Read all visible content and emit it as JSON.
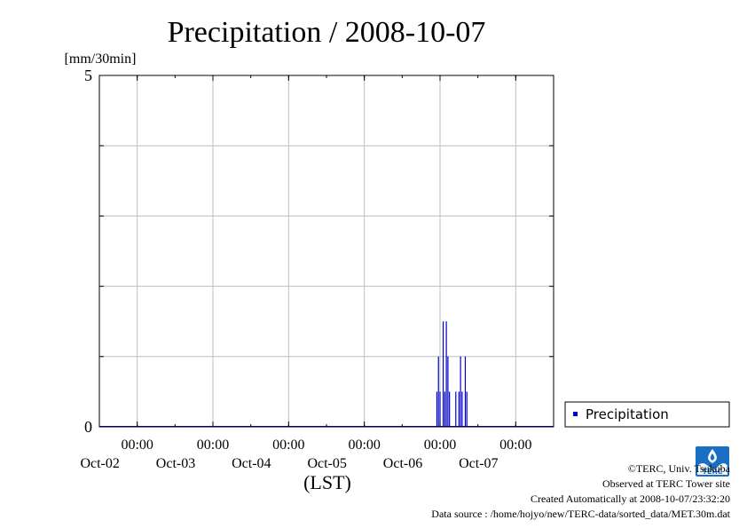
{
  "chart_data": {
    "type": "bar",
    "title": "Precipitation / 2008-10-07",
    "ylabel": "[mm/30min]",
    "xlabel": "(LST)",
    "ylim": [
      0,
      5
    ],
    "y_ticks": [
      0,
      5
    ],
    "grid": true,
    "legend_position": "right",
    "x_range": [
      "2008-10-01 12:00",
      "2008-10-07 12:00"
    ],
    "x_ticks": [
      {
        "time": "2008-10-02 00:00",
        "time_label": "00:00",
        "date_label": "Oct-02"
      },
      {
        "time": "2008-10-03 00:00",
        "time_label": "00:00",
        "date_label": "Oct-03"
      },
      {
        "time": "2008-10-04 00:00",
        "time_label": "00:00",
        "date_label": "Oct-04"
      },
      {
        "time": "2008-10-05 00:00",
        "time_label": "00:00",
        "date_label": "Oct-05"
      },
      {
        "time": "2008-10-06 00:00",
        "time_label": "00:00",
        "date_label": "Oct-06"
      },
      {
        "time": "2008-10-07 00:00",
        "time_label": "00:00",
        "date_label": "Oct-07"
      }
    ],
    "series": [
      {
        "name": "Precipitation",
        "color": "#0000cc",
        "points": [
          {
            "time": "2008-10-05 23:00",
            "value": 0.5
          },
          {
            "time": "2008-10-05 23:30",
            "value": 1.0
          },
          {
            "time": "2008-10-06 00:00",
            "value": 0.5
          },
          {
            "time": "2008-10-06 01:00",
            "value": 1.5
          },
          {
            "time": "2008-10-06 01:30",
            "value": 0.5
          },
          {
            "time": "2008-10-06 02:00",
            "value": 1.5
          },
          {
            "time": "2008-10-06 02:30",
            "value": 1.0
          },
          {
            "time": "2008-10-06 03:00",
            "value": 0.5
          },
          {
            "time": "2008-10-06 05:00",
            "value": 0.5
          },
          {
            "time": "2008-10-06 06:00",
            "value": 0.5
          },
          {
            "time": "2008-10-06 06:30",
            "value": 1.0
          },
          {
            "time": "2008-10-06 07:00",
            "value": 0.5
          },
          {
            "time": "2008-10-06 08:00",
            "value": 1.0
          },
          {
            "time": "2008-10-06 08:30",
            "value": 0.5
          }
        ]
      }
    ]
  },
  "footer": {
    "copyright": "©TERC, Univ. Tsukuba",
    "observed": "Observed at TERC Tower site",
    "created": "Created Automatically at 2008-10-07/23:32:20",
    "source": "Data source : /home/hojyo/new/TERC-data/sorted_data/MET.30m.dat"
  },
  "logo": {
    "name": "terc-logo",
    "text": "TERC",
    "color": "#1a6fc4"
  }
}
